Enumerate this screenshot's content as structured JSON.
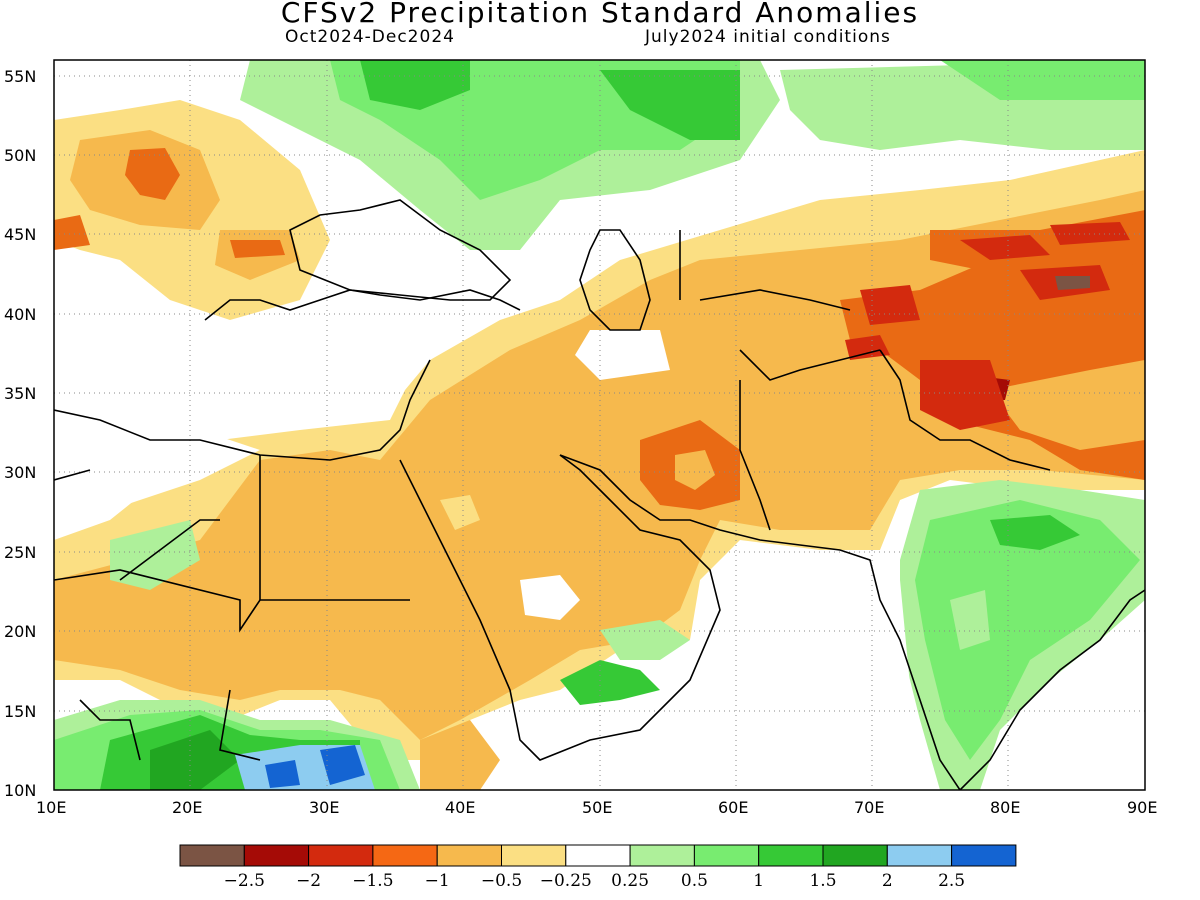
{
  "title": "CFSv2 Precipitation Standard Anomalies",
  "subtitle_left": "Oct2024-Dec2024",
  "subtitle_right": "July2024 initial conditions",
  "map": {
    "lon_ticks": [
      "10E",
      "20E",
      "30E",
      "40E",
      "50E",
      "60E",
      "70E",
      "80E",
      "90E"
    ],
    "lat_ticks": [
      "55N",
      "50N",
      "45N",
      "40N",
      "35N",
      "30N",
      "25N",
      "20N",
      "15N",
      "10N"
    ],
    "lon_range": [
      10,
      90
    ],
    "lat_range": [
      10,
      56
    ],
    "grid": "dotted"
  },
  "colors": {
    "dry_strong": "#e96a14",
    "dry_mid": "#f6b94d",
    "dry_light": "#fbdf83",
    "wet_light": "#aef09a",
    "wet_mid": "#78ec70",
    "wet_strong": "#36c936",
    "wet_deeper": "#21a621",
    "wet_lightblue": "#8dccf0",
    "wet_blue": "#1464d2",
    "extreme_red": "#d32a0e",
    "extreme_darkred": "#a50b06",
    "extreme_brown": "#7b5444"
  },
  "colorbar": {
    "colors": [
      "#7b5444",
      "#a50b06",
      "#d32a0e",
      "#f56814",
      "#f6b94d",
      "#fbdf83",
      "#ffffff",
      "#aef09a",
      "#78ec70",
      "#36c936",
      "#21a621",
      "#8dccf0",
      "#1464d2"
    ],
    "labels": [
      "−2.5",
      "−2",
      "−1.5",
      "−1",
      "−0.5",
      "−0.25",
      "0.25",
      "0.5",
      "1",
      "1.5",
      "2",
      "2.5"
    ]
  }
}
